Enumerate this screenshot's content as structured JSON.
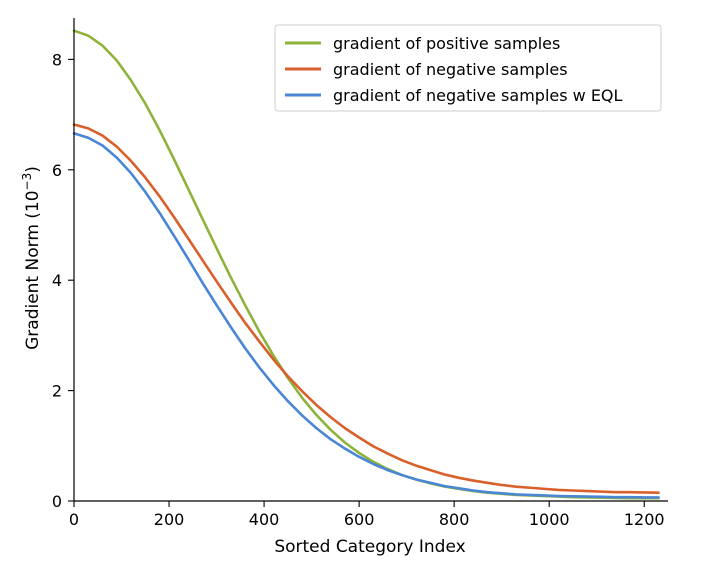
{
  "chart_data": {
    "type": "line",
    "xlabel": "Sorted Category Index",
    "ylabel_main": "Gradient Norm (10",
    "ylabel_exp": "−3",
    "ylabel_close": ")",
    "xlim": [
      0,
      1250
    ],
    "ylim": [
      0,
      8.75
    ],
    "xticks": [
      0,
      200,
      400,
      600,
      800,
      1000,
      1200
    ],
    "yticks": [
      0,
      2,
      4,
      6,
      8
    ],
    "grid": false,
    "legend_position": "top-right",
    "x": [
      0,
      30,
      60,
      90,
      120,
      150,
      180,
      210,
      240,
      270,
      300,
      330,
      360,
      390,
      420,
      450,
      480,
      510,
      540,
      570,
      600,
      630,
      660,
      690,
      720,
      750,
      780,
      810,
      840,
      870,
      900,
      930,
      960,
      990,
      1020,
      1050,
      1080,
      1110,
      1140,
      1170,
      1200,
      1230
    ],
    "series": [
      {
        "name": "gradient of positive samples",
        "color": "#8db33a",
        "values": [
          8.52,
          8.43,
          8.25,
          7.98,
          7.62,
          7.2,
          6.72,
          6.2,
          5.66,
          5.12,
          4.58,
          4.05,
          3.55,
          3.07,
          2.63,
          2.23,
          1.87,
          1.56,
          1.29,
          1.06,
          0.87,
          0.71,
          0.58,
          0.47,
          0.39,
          0.32,
          0.26,
          0.22,
          0.18,
          0.15,
          0.13,
          0.11,
          0.1,
          0.09,
          0.08,
          0.07,
          0.065,
          0.06,
          0.055,
          0.05,
          0.05,
          0.05
        ]
      },
      {
        "name": "gradient of negative samples",
        "color": "#d95f2b",
        "values": [
          6.82,
          6.75,
          6.62,
          6.42,
          6.16,
          5.86,
          5.52,
          5.15,
          4.76,
          4.37,
          3.98,
          3.6,
          3.23,
          2.89,
          2.56,
          2.26,
          1.99,
          1.74,
          1.52,
          1.32,
          1.15,
          0.99,
          0.86,
          0.74,
          0.64,
          0.56,
          0.48,
          0.42,
          0.37,
          0.33,
          0.29,
          0.26,
          0.24,
          0.22,
          0.2,
          0.19,
          0.18,
          0.17,
          0.16,
          0.16,
          0.155,
          0.15
        ]
      },
      {
        "name": "gradient of negative samples w EQL",
        "color": "#4a86d6",
        "values": [
          6.66,
          6.58,
          6.44,
          6.22,
          5.94,
          5.6,
          5.22,
          4.81,
          4.39,
          3.96,
          3.55,
          3.15,
          2.77,
          2.42,
          2.1,
          1.81,
          1.55,
          1.32,
          1.12,
          0.95,
          0.8,
          0.67,
          0.56,
          0.47,
          0.39,
          0.33,
          0.27,
          0.23,
          0.19,
          0.16,
          0.14,
          0.12,
          0.11,
          0.1,
          0.09,
          0.085,
          0.08,
          0.075,
          0.07,
          0.07,
          0.065,
          0.065
        ]
      }
    ]
  }
}
